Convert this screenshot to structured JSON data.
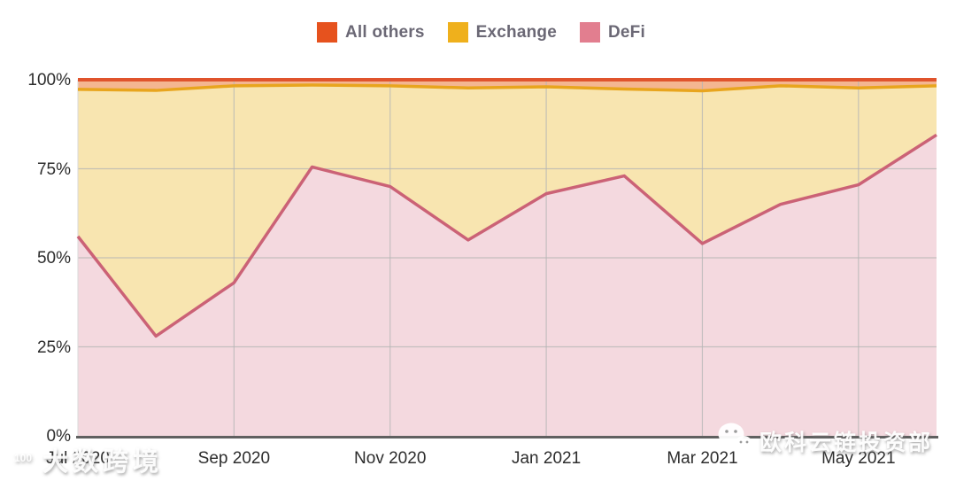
{
  "legend": {
    "items": [
      {
        "label": "All others",
        "color": "#e6521e"
      },
      {
        "label": "Exchange",
        "color": "#efb01c"
      },
      {
        "label": "DeFi",
        "color": "#e27e8f"
      }
    ],
    "text_color": "#6b6875"
  },
  "axes": {
    "y_tick_labels": [
      "100%",
      "75%",
      "50%",
      "25%",
      "0%"
    ],
    "x_tick_labels": [
      "Jul 2020",
      "Sep 2020",
      "Nov 2020",
      "Jan 2021",
      "Mar 2021",
      "May 2021"
    ],
    "grid_color": "#b5b5b5",
    "axis_line_color": "#606060",
    "tick_label_color": "#2d2d2d"
  },
  "chart_data": {
    "type": "area",
    "stacked": true,
    "percent_100": true,
    "title": "",
    "xlabel": "",
    "ylabel": "",
    "ylim": [
      0,
      100
    ],
    "grid": true,
    "legend_position": "top",
    "stack_order": "bottom_to_top",
    "x": [
      "Jul 2020",
      "Aug 2020",
      "Sep 2020",
      "Oct 2020",
      "Nov 2020",
      "Dec 2020",
      "Jan 2021",
      "Feb 2021",
      "Mar 2021",
      "Apr 2021",
      "May 2021",
      "Jun 2021"
    ],
    "x_tick_indices": [
      0,
      2,
      4,
      6,
      8,
      10
    ],
    "y_ticks": [
      100,
      75,
      50,
      25,
      0
    ],
    "series": [
      {
        "name": "DeFi",
        "fill": "#f4d9df",
        "line": "#cb6276",
        "line_width": 3.5,
        "values": [
          56,
          28,
          43,
          75.5,
          70,
          55,
          68,
          73,
          54,
          65,
          70.5,
          84.5
        ]
      },
      {
        "name": "Exchange",
        "fill": "#f8e5b0",
        "line": "#e8a51e",
        "line_width": 3.5,
        "values": [
          41.3,
          69,
          55.3,
          23,
          28.3,
          42.7,
          30,
          24.4,
          42.9,
          33.3,
          27.2,
          13.8
        ]
      },
      {
        "name": "All others",
        "fill": "#f4b691",
        "line": "#e0542c",
        "line_width": 4,
        "values": [
          2.7,
          3,
          1.7,
          1.5,
          1.7,
          2.3,
          2,
          2.6,
          3.1,
          1.7,
          2.3,
          1.7
        ]
      }
    ]
  },
  "watermarks": {
    "bottom_left": {
      "icon": "10-100-logo-icon",
      "text": "大数跨境"
    },
    "bottom_right": {
      "icon": "wechat-icon",
      "text": "欧科云链投资部"
    }
  }
}
